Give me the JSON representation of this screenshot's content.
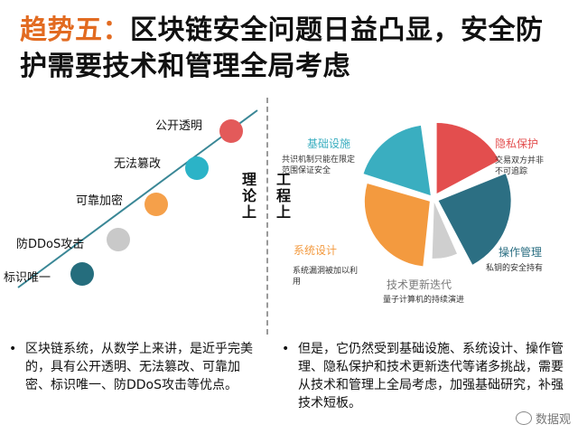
{
  "title": {
    "accent": "趋势五：",
    "text": "区块链安全问题日益凸显，安全防护需要技术和管理全局考虑"
  },
  "theory": {
    "vertical_label": "理论上",
    "items": [
      {
        "label": "公开透明",
        "color": "#e35a5a"
      },
      {
        "label": "无法篡改",
        "color": "#2bb3c7"
      },
      {
        "label": "可靠加密",
        "color": "#f5a04a"
      },
      {
        "label": "防DDoS攻击",
        "color": "#c9c9c9"
      },
      {
        "label": "标识唯一",
        "color": "#256d7d"
      }
    ]
  },
  "engineering": {
    "vertical_label": "工程上",
    "segments": [
      {
        "name": "基础设施",
        "desc": "共识机制只能在限定范围保证安全",
        "color": "#3aaec0"
      },
      {
        "name": "隐私保护",
        "desc": "交易双方并非不可追踪",
        "color": "#e34e4e"
      },
      {
        "name": "操作管理",
        "desc": "私钥的安全持有",
        "color": "#2c6f83"
      },
      {
        "name": "技术更新迭代",
        "desc": "量子计算机的持续演进",
        "color": "#cfcfcf"
      },
      {
        "name": "系统设计",
        "desc": "系统漏洞被加以利用",
        "color": "#f39a3f"
      }
    ]
  },
  "bullets": {
    "left": "区块链系统，从数学上来讲，是近乎完美的，具有公开透明、无法篡改、可靠加密、标识唯一、防DDoS攻击等优点。",
    "right": "但是，它仍然受到基础设施、系统设计、操作管理、隐私保护和技术更新迭代等诸多挑战，需要从技术和管理上全局考虑，加强基础研究，补强技术短板。"
  },
  "watermark": "数据观"
}
